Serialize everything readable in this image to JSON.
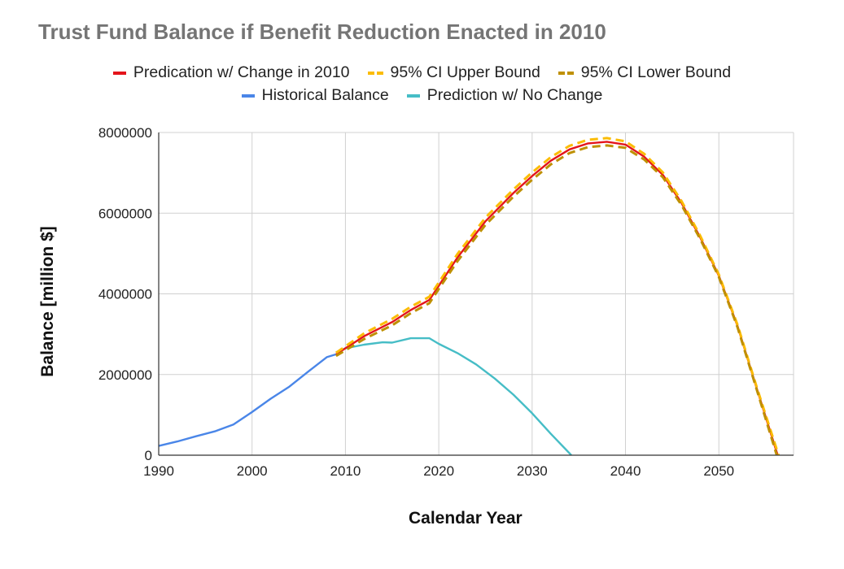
{
  "chart_data": {
    "type": "line",
    "title": "Trust Fund Balance if Benefit Reduction Enacted in 2010",
    "xlabel": "Calendar Year",
    "ylabel": "Balance [million $]",
    "xlim": [
      1990,
      2058
    ],
    "ylim": [
      0,
      8000000
    ],
    "xticks": [
      "1990",
      "2000",
      "2010",
      "2020",
      "2030",
      "2040",
      "2050"
    ],
    "yticks": [
      "0",
      "2000000",
      "4000000",
      "6000000",
      "8000000"
    ],
    "grid": true,
    "legend_position": "top",
    "series": [
      {
        "name": "Predication w/ Change in 2010",
        "color": "#e4141b",
        "dashed": false,
        "x": [
          2009,
          2012,
          2015,
          2017,
          2019,
          2020,
          2022,
          2025,
          2028,
          2030,
          2032,
          2034,
          2036,
          2038,
          2040,
          2042,
          2044,
          2046,
          2048,
          2050,
          2052,
          2054,
          2056.3
        ],
        "y": [
          2500000,
          2950000,
          3300000,
          3600000,
          3850000,
          4200000,
          4900000,
          5800000,
          6500000,
          6920000,
          7300000,
          7580000,
          7730000,
          7770000,
          7700000,
          7400000,
          6950000,
          6250000,
          5400000,
          4450000,
          3200000,
          1700000,
          0
        ]
      },
      {
        "name": "95% CI Upper Bound",
        "color": "#fbbc04",
        "dashed": true,
        "x": [
          2009,
          2012,
          2015,
          2017,
          2019,
          2020,
          2022,
          2025,
          2028,
          2030,
          2032,
          2034,
          2036,
          2038,
          2040,
          2042,
          2044,
          2046,
          2048,
          2050,
          2052,
          2054,
          2056.4
        ],
        "y": [
          2540000,
          3020000,
          3380000,
          3680000,
          3930000,
          4280000,
          4990000,
          5890000,
          6590000,
          7010000,
          7390000,
          7670000,
          7820000,
          7860000,
          7780000,
          7470000,
          7010000,
          6300000,
          5440000,
          4480000,
          3230000,
          1730000,
          0
        ]
      },
      {
        "name": "95% CI Lower Bound",
        "color": "#bf9000",
        "dashed": true,
        "x": [
          2009,
          2012,
          2015,
          2017,
          2019,
          2020,
          2022,
          2025,
          2028,
          2030,
          2032,
          2034,
          2036,
          2038,
          2040,
          2042,
          2044,
          2046,
          2048,
          2050,
          2052,
          2054,
          2056.2
        ],
        "y": [
          2460000,
          2880000,
          3220000,
          3520000,
          3770000,
          4120000,
          4810000,
          5710000,
          6410000,
          6830000,
          7210000,
          7490000,
          7640000,
          7680000,
          7620000,
          7330000,
          6890000,
          6200000,
          5360000,
          4420000,
          3170000,
          1670000,
          0
        ]
      },
      {
        "name": "Historical Balance",
        "color": "#4a86e8",
        "dashed": false,
        "x": [
          1990,
          1992,
          1994,
          1996,
          1998,
          2000,
          2002,
          2004,
          2006,
          2008,
          2009
        ],
        "y": [
          230000,
          340000,
          470000,
          590000,
          760000,
          1070000,
          1400000,
          1700000,
          2070000,
          2430000,
          2500000
        ]
      },
      {
        "name": "Prediction w/ No Change",
        "color": "#46bdc6",
        "dashed": false,
        "x": [
          2009,
          2010,
          2012,
          2014,
          2015,
          2017,
          2019,
          2020,
          2022,
          2024,
          2026,
          2028,
          2030,
          2032,
          2034.2
        ],
        "y": [
          2550000,
          2650000,
          2740000,
          2800000,
          2790000,
          2900000,
          2900000,
          2760000,
          2530000,
          2250000,
          1900000,
          1500000,
          1040000,
          530000,
          0
        ]
      }
    ]
  }
}
